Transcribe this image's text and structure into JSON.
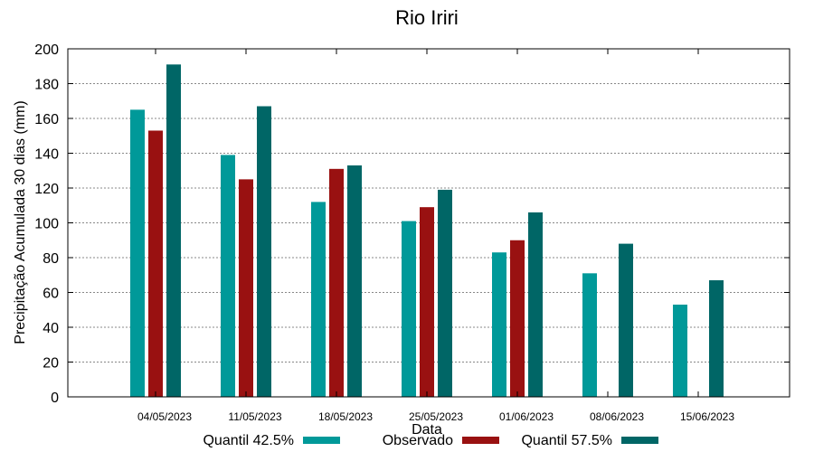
{
  "chart_data": {
    "type": "bar",
    "title": "Rio Iriri",
    "xlabel": "Data",
    "ylabel": "Precipitação Acumulada 30 dias (mm)",
    "ylim": [
      0,
      200
    ],
    "yticks": [
      0,
      20,
      40,
      60,
      80,
      100,
      120,
      140,
      160,
      180,
      200
    ],
    "grid": true,
    "legend_position": "bottom",
    "categories": [
      "04/05/2023",
      "11/05/2023",
      "18/05/2023",
      "25/05/2023",
      "01/06/2023",
      "08/06/2023",
      "15/06/2023"
    ],
    "series": [
      {
        "name": "Quantil 42.5%",
        "color": "#009999",
        "values": [
          165,
          139,
          112,
          101,
          83,
          71,
          53
        ]
      },
      {
        "name": "Observado",
        "color": "#991111",
        "values": [
          153,
          125,
          131,
          109,
          90,
          null,
          null
        ]
      },
      {
        "name": "Quantil 57.5%",
        "color": "#006666",
        "values": [
          191,
          167,
          133,
          119,
          106,
          88,
          67
        ]
      }
    ]
  }
}
